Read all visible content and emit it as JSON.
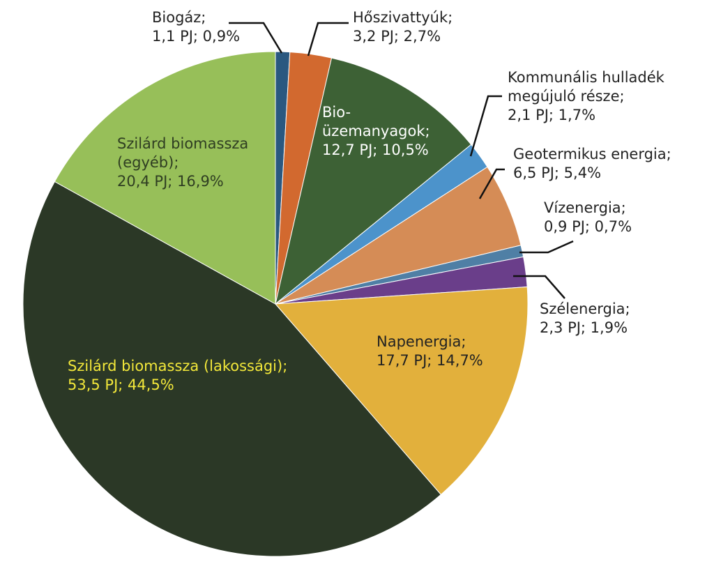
{
  "chart_data": {
    "type": "pie",
    "unit": "PJ",
    "slices": [
      {
        "name": "Biogáz",
        "value": 1.1,
        "percent": 0.9,
        "color": "#2a5880",
        "lines": [
          "Biogáz;",
          "1,1 PJ; 0,9%"
        ],
        "label_color": "#222222"
      },
      {
        "name": "Hőszivattyúk",
        "value": 3.2,
        "percent": 2.7,
        "color": "#d2692f",
        "lines": [
          "Hőszivattyúk;",
          "3,2 PJ; 2,7%"
        ],
        "label_color": "#222222"
      },
      {
        "name": "Bio-üzemanyagok",
        "value": 12.7,
        "percent": 10.5,
        "color": "#3d6135",
        "lines": [
          "Bio-",
          "üzemanyagok;",
          "12,7 PJ; 10,5%"
        ],
        "label_color": "#ffffff"
      },
      {
        "name": "Kommunális hulladék megújuló része",
        "value": 2.1,
        "percent": 1.7,
        "color": "#4c93cb",
        "lines": [
          "Kommunális hulladék",
          "megújuló része;",
          "2,1 PJ; 1,7%"
        ],
        "label_color": "#222222"
      },
      {
        "name": "Geotermikus energia",
        "value": 6.5,
        "percent": 5.4,
        "color": "#d58c56",
        "lines": [
          "Geotermikus energia;",
          "6,5 PJ; 5,4%"
        ],
        "label_color": "#222222"
      },
      {
        "name": "Vízenergia",
        "value": 0.9,
        "percent": 0.7,
        "color": "#4f7fa5",
        "lines": [
          "Vízenergia;",
          "0,9 PJ; 0,7%"
        ],
        "label_color": "#222222"
      },
      {
        "name": "Szélenergia",
        "value": 2.3,
        "percent": 1.9,
        "color": "#6a3e8a",
        "lines": [
          "Szélenergia;",
          "2,3 PJ; 1,9%"
        ],
        "label_color": "#222222"
      },
      {
        "name": "Napenergia",
        "value": 17.7,
        "percent": 14.7,
        "color": "#e2b03c",
        "lines": [
          "Napenergia;",
          "17,7 PJ; 14,7%"
        ],
        "label_color": "#222222"
      },
      {
        "name": "Szilárd biomassza (lakossági)",
        "value": 53.5,
        "percent": 44.5,
        "color": "#2b3826",
        "lines": [
          "Szilárd biomassza (lakossági);",
          "53,5 PJ; 44,5%"
        ],
        "label_color": "#f3e83a"
      },
      {
        "name": "Szilárd biomassza (egyéb)",
        "value": 20.4,
        "percent": 16.9,
        "color": "#97bf59",
        "lines": [
          "Szilárd biomassza",
          "(egyéb);",
          "20,4 PJ; 16,9%"
        ],
        "label_color": "#2f3e22"
      }
    ]
  }
}
